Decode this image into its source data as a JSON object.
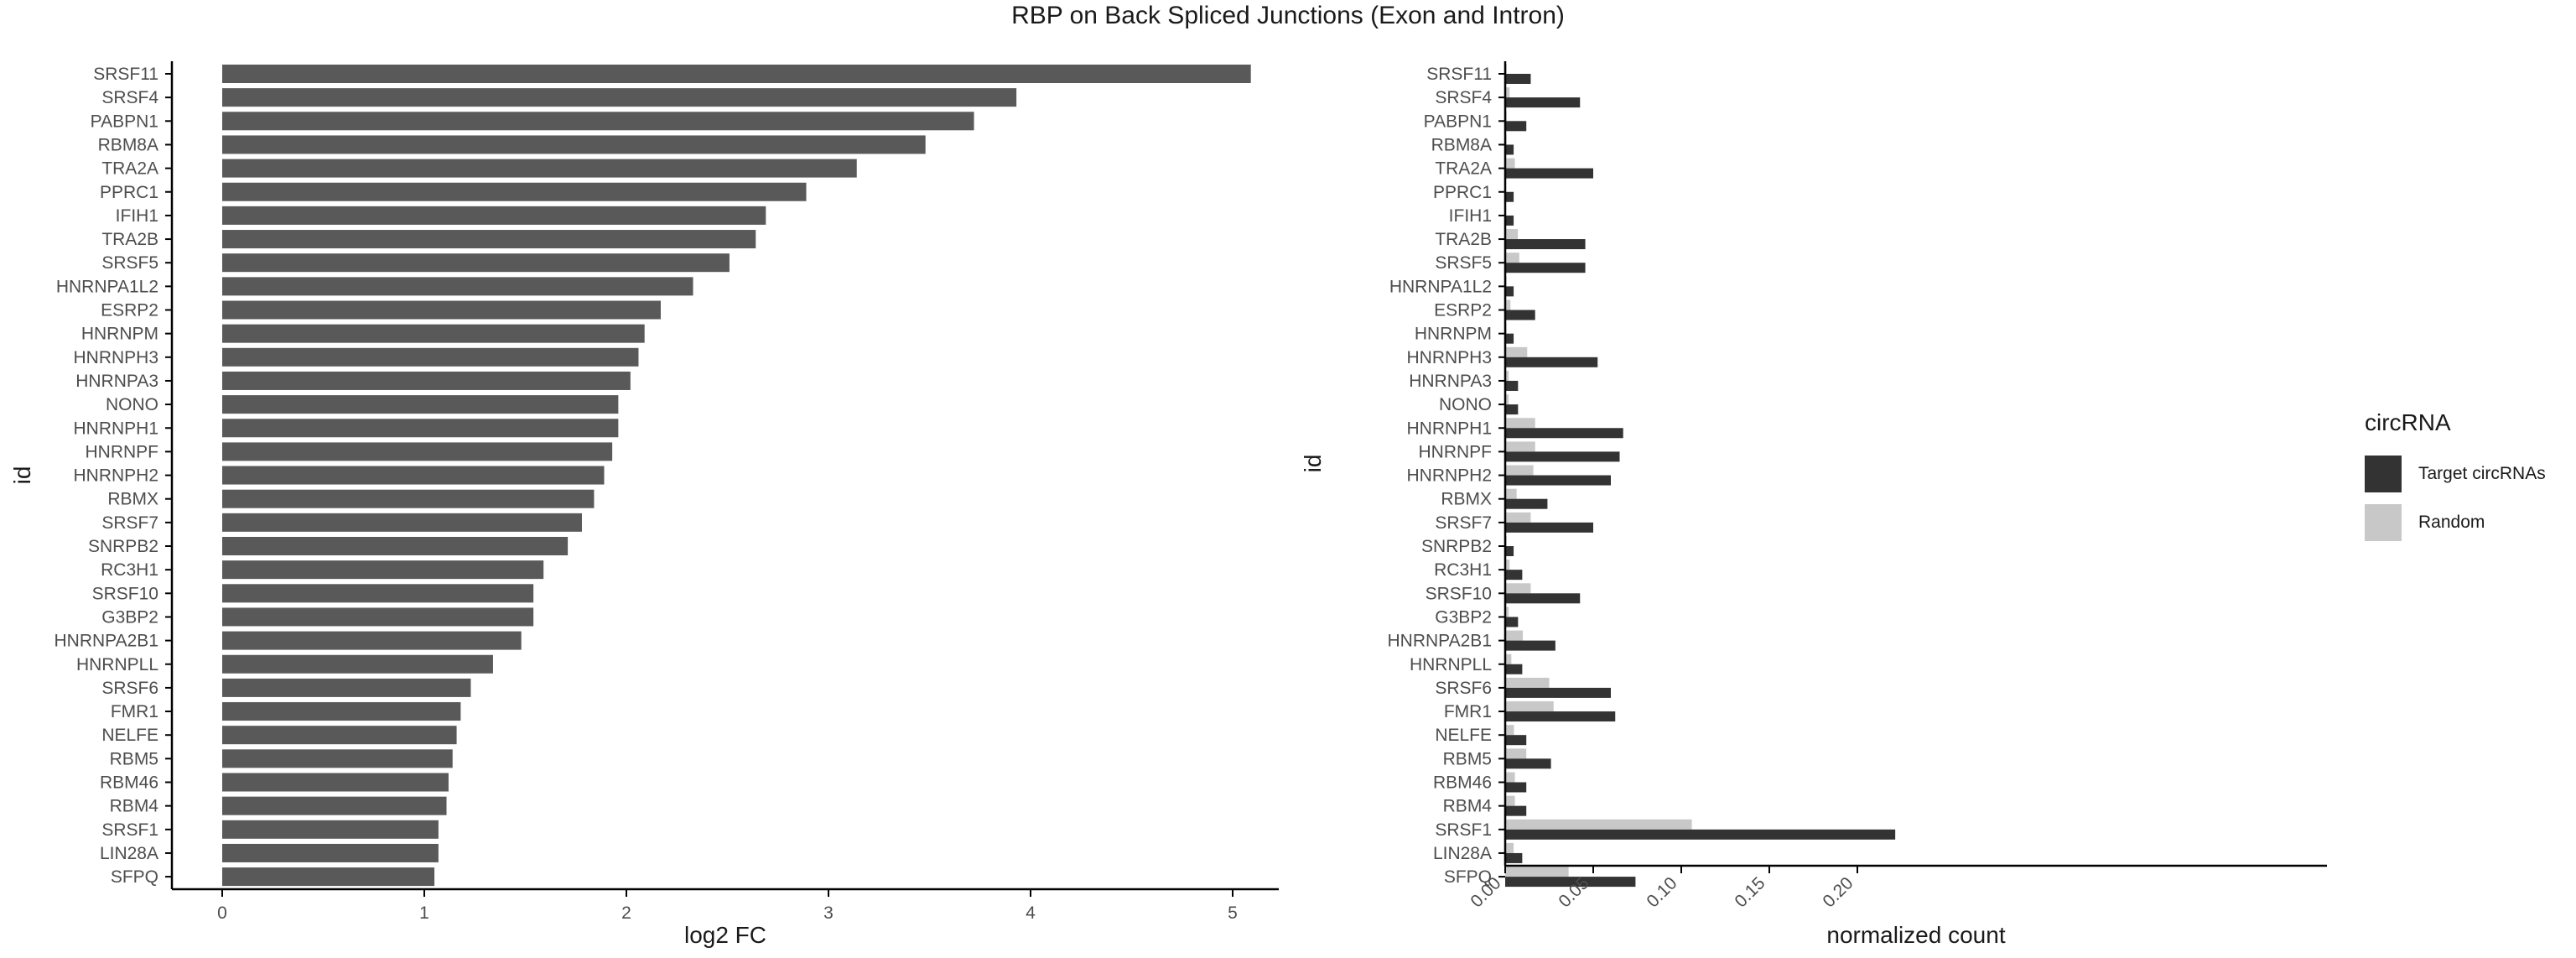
{
  "title": "RBP on Back Spliced Junctions (Exon and Intron)",
  "colors": {
    "bar": "#595959",
    "target": "#333333",
    "random": "#c8c8c8",
    "axis": "#000000",
    "text": "#4d4d4d"
  },
  "legend": {
    "title": "circRNA",
    "items": [
      {
        "label": "Target circRNAs",
        "color": "#333333"
      },
      {
        "label": "Random",
        "color": "#c8c8c8"
      }
    ]
  },
  "chart_data": [
    {
      "type": "bar",
      "orientation": "horizontal",
      "xlabel": "log2 FC",
      "ylabel": "id",
      "xlim": [
        0,
        5.3
      ],
      "xticks": [
        0,
        1,
        2,
        3,
        4,
        5
      ],
      "grid": false,
      "categories": [
        "SRSF11",
        "SRSF4",
        "PABPN1",
        "RBM8A",
        "TRA2A",
        "PPRC1",
        "IFIH1",
        "TRA2B",
        "SRSF5",
        "HNRNPA1L2",
        "ESRP2",
        "HNRNPM",
        "HNRNPH3",
        "HNRNPA3",
        "NONO",
        "HNRNPH1",
        "HNRNPF",
        "HNRNPH2",
        "RBMX",
        "SRSF7",
        "SNRPB2",
        "RC3H1",
        "SRSF10",
        "G3BP2",
        "HNRNPA2B1",
        "HNRNPLL",
        "SRSF6",
        "FMR1",
        "NELFE",
        "RBM5",
        "RBM46",
        "RBM4",
        "SRSF1",
        "LIN28A",
        "SFPQ"
      ],
      "values": [
        5.09,
        3.93,
        3.72,
        3.48,
        3.14,
        2.89,
        2.69,
        2.64,
        2.51,
        2.33,
        2.17,
        2.09,
        2.06,
        2.02,
        1.96,
        1.96,
        1.93,
        1.89,
        1.84,
        1.78,
        1.71,
        1.59,
        1.54,
        1.54,
        1.48,
        1.34,
        1.23,
        1.18,
        1.16,
        1.14,
        1.12,
        1.11,
        1.07,
        1.07,
        1.05
      ]
    },
    {
      "type": "bar",
      "orientation": "horizontal",
      "xlabel": "normalized count",
      "ylabel": "id",
      "xlim": [
        -0.0025,
        0.233
      ],
      "xticks": [
        0.0,
        0.05,
        0.1,
        0.15,
        0.2
      ],
      "xtick_labels": [
        "0.00",
        "0.05",
        "0.10",
        "0.15",
        "0.20"
      ],
      "grid": false,
      "categories": [
        "SRSF11",
        "SRSF4",
        "PABPN1",
        "RBM8A",
        "TRA2A",
        "PPRC1",
        "IFIH1",
        "TRA2B",
        "SRSF5",
        "HNRNPA1L2",
        "ESRP2",
        "HNRNPM",
        "HNRNPH3",
        "HNRNPA3",
        "NONO",
        "HNRNPH1",
        "HNRNPF",
        "HNRNPH2",
        "RBMX",
        "SRSF7",
        "SNRPB2",
        "RC3H1",
        "SRSF10",
        "G3BP2",
        "HNRNPA2B1",
        "HNRNPLL",
        "SRSF6",
        "FMR1",
        "NELFE",
        "RBM5",
        "RBM46",
        "RBM4",
        "SRSF1",
        "LIN28A",
        "SFPQ"
      ],
      "series": [
        {
          "name": "Target circRNAs",
          "values": [
            0.0145,
            0.0425,
            0.012,
            0.0048,
            0.05,
            0.0048,
            0.0048,
            0.0455,
            0.0455,
            0.0048,
            0.017,
            0.0048,
            0.0525,
            0.0073,
            0.0073,
            0.067,
            0.065,
            0.06,
            0.024,
            0.05,
            0.0048,
            0.0097,
            0.0425,
            0.0073,
            0.0285,
            0.0097,
            0.06,
            0.0625,
            0.012,
            0.026,
            0.012,
            0.012,
            0.2215,
            0.0097,
            0.074
          ]
        },
        {
          "name": "Random",
          "values": [
            0.0008,
            0.0025,
            0.0008,
            0.0008,
            0.0055,
            0.0,
            0.0,
            0.0072,
            0.008,
            0.0008,
            0.003,
            0.0008,
            0.0125,
            0.002,
            0.002,
            0.017,
            0.017,
            0.016,
            0.0065,
            0.0145,
            0.0008,
            0.0025,
            0.0145,
            0.002,
            0.01,
            0.0035,
            0.025,
            0.0275,
            0.005,
            0.012,
            0.0055,
            0.0055,
            0.106,
            0.0048,
            0.036
          ]
        }
      ]
    }
  ]
}
